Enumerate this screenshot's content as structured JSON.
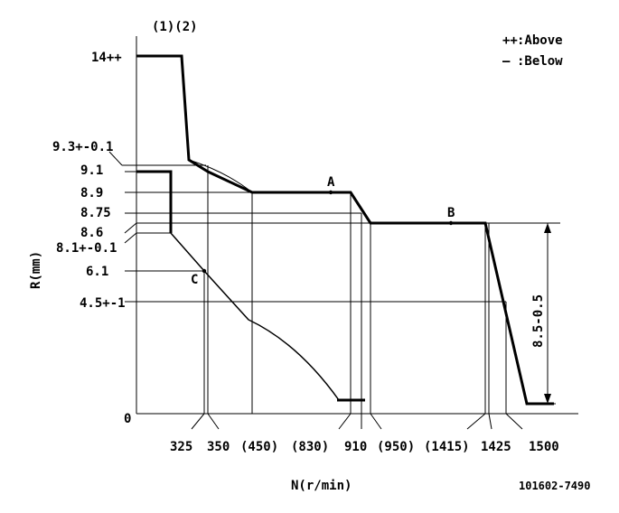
{
  "chart_data": {
    "type": "line",
    "title": "(1)(2)",
    "xlabel": "N(r/min)",
    "ylabel": "R(mm)",
    "origin_label": "0",
    "legend": [
      {
        "symbol": "++",
        "label": ":Above"
      },
      {
        "symbol": "—",
        "label": ":Below"
      }
    ],
    "y_tick_labels": [
      "14++",
      "9.3+-0.1",
      "9.1",
      "8.9",
      "8.75",
      "8.6",
      "8.1+-0.1",
      "6.1",
      "4.5+-1"
    ],
    "x_tick_labels": [
      "325",
      "350",
      "(450)",
      "(830)",
      "910",
      "(950)",
      "(1415)",
      "1425",
      "1500"
    ],
    "point_labels": [
      "A",
      "B",
      "C"
    ],
    "dimension_label": "8.5-0.5",
    "figure_id": "101602-7490",
    "series": [
      {
        "style": "bold",
        "points": [
          [
            0,
            14
          ],
          [
            90,
            14
          ],
          [
            110,
            9.3
          ],
          [
            350,
            9.1
          ],
          [
            450,
            8.9
          ],
          [
            830,
            8.9
          ],
          [
            910,
            8.6
          ],
          [
            1425,
            8.6
          ],
          [
            1500,
            0.3
          ],
          [
            1520,
            0.3
          ]
        ]
      },
      {
        "style": "bold",
        "points": [
          [
            0,
            9.1
          ],
          [
            70,
            9.1
          ],
          [
            70,
            8.1
          ],
          [
            325,
            6.1
          ],
          [
            450,
            4.0
          ],
          [
            830,
            0.3
          ],
          [
            870,
            0.3
          ]
        ]
      }
    ]
  }
}
